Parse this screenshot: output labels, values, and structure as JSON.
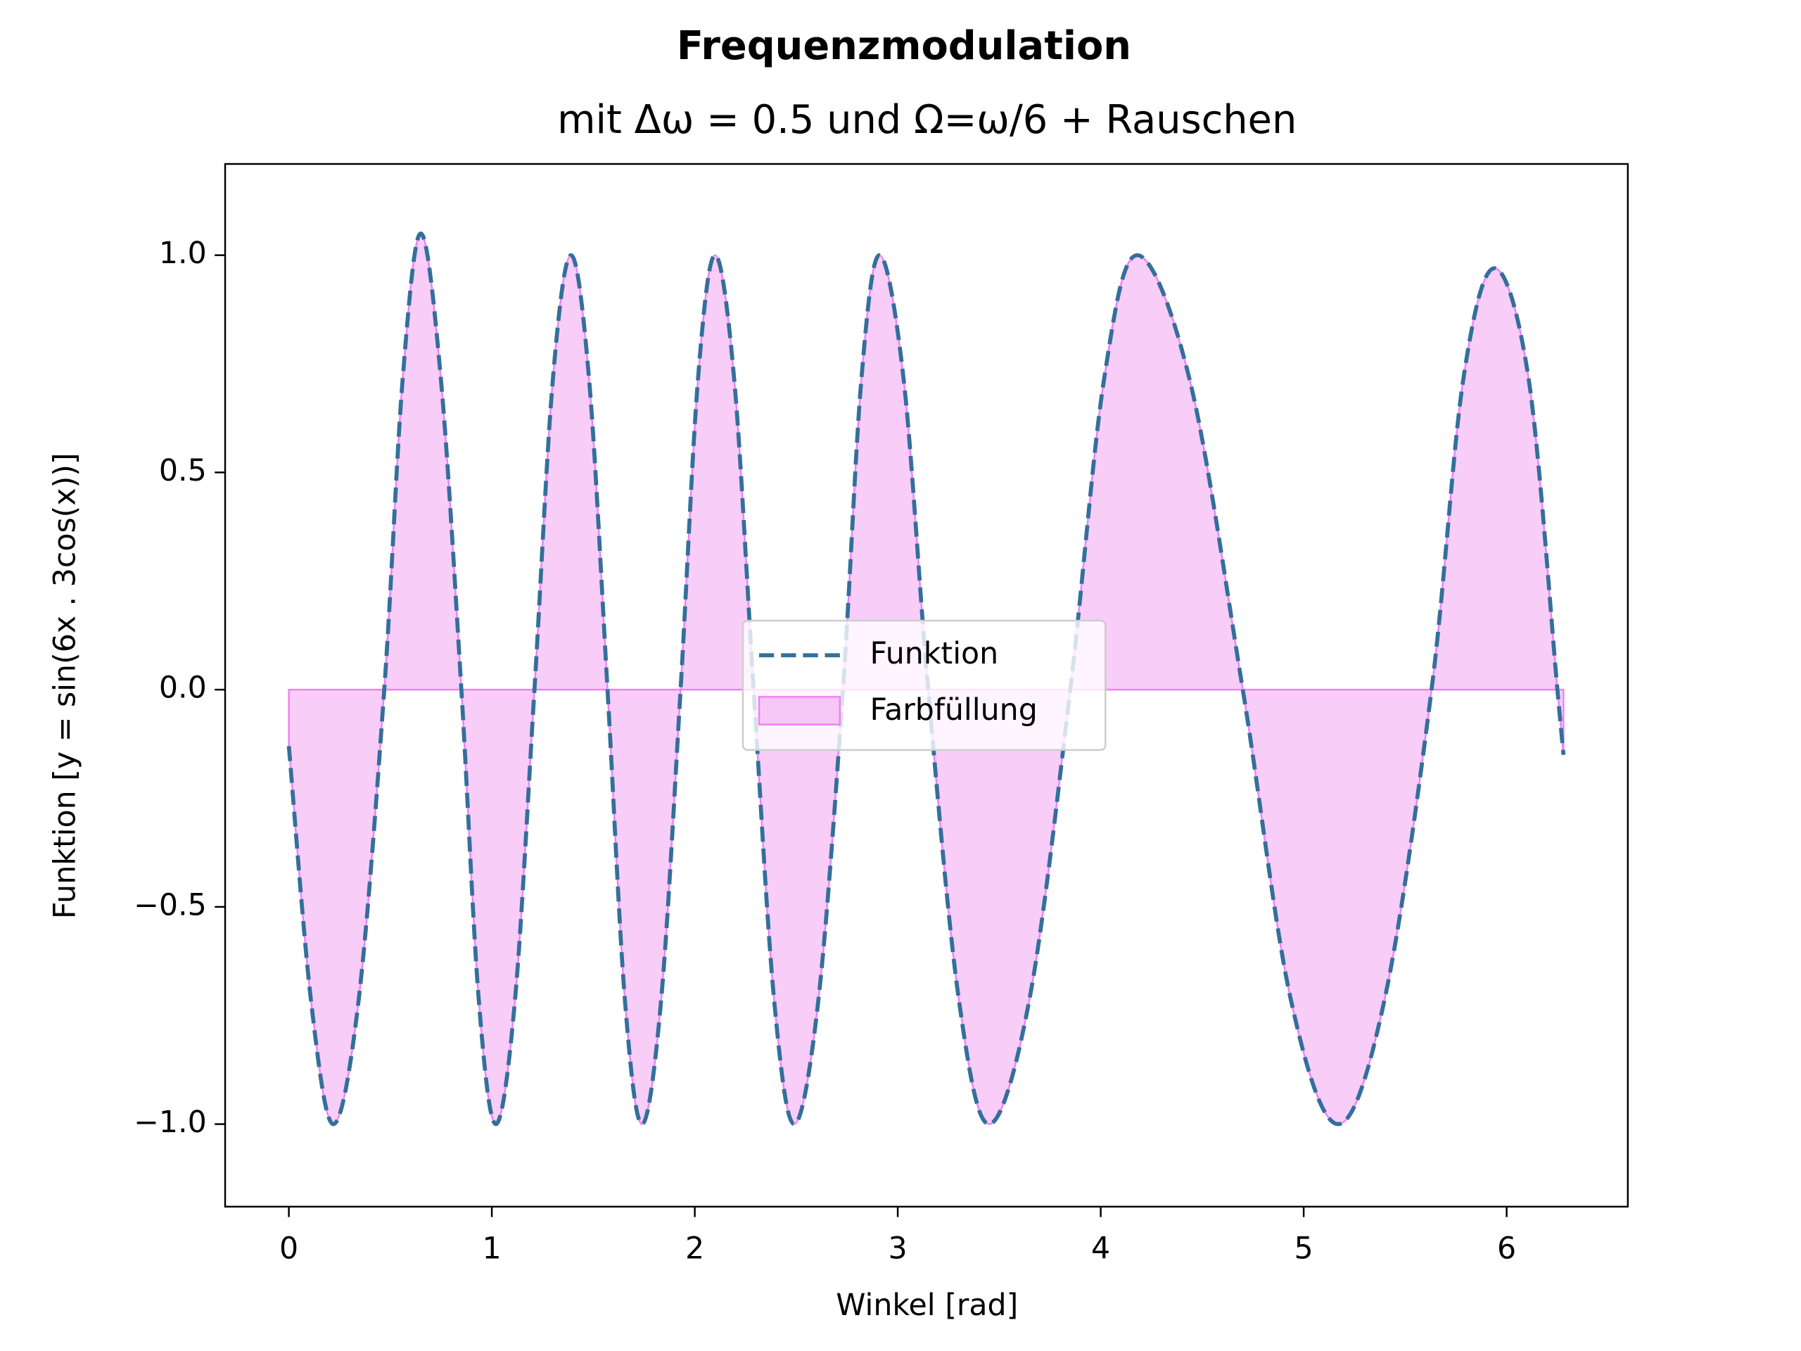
{
  "chart_data": {
    "type": "line",
    "title": "Frequenzmodulation",
    "subtitle": "mit Δω = 0.5 und Ω=ω/6 + Rauschen",
    "x_label": "Winkel [rad]",
    "y_label": "Funktion [y = sin(6x . 3cos(x))]",
    "x": [
      0,
      0.11,
      0.22,
      0.345,
      0.47,
      0.56,
      0.65,
      0.75,
      0.85,
      0.935,
      1.02,
      1.115,
      1.21,
      1.3,
      1.39,
      1.48,
      1.57,
      1.655,
      1.74,
      1.835,
      1.93,
      2.015,
      2.1,
      2.195,
      2.29,
      2.39,
      2.49,
      2.61,
      2.73,
      2.82,
      2.91,
      3.03,
      3.15,
      3.3,
      3.45,
      3.65,
      3.85,
      4.015,
      4.18,
      4.44,
      4.7,
      4.935,
      5.17,
      5.4,
      5.63,
      5.785,
      5.94,
      6.11,
      6.25,
      6.28
    ],
    "series": [
      {
        "name": "Funktion",
        "color": "#336f9b",
        "dashed": true,
        "values": [
          -0.13,
          -0.72,
          -1.0,
          -0.71,
          0,
          0.71,
          1.05,
          0.71,
          0,
          -0.71,
          -1.0,
          -0.71,
          0,
          0.71,
          1.0,
          0.71,
          0,
          -0.71,
          -1.0,
          -0.71,
          0,
          0.71,
          1.0,
          0.71,
          0,
          -0.71,
          -1.0,
          -0.71,
          0,
          0.71,
          1.0,
          0.71,
          0,
          -0.71,
          -1.0,
          -0.71,
          0,
          0.71,
          1.0,
          0.71,
          0,
          -0.71,
          -1.0,
          -0.71,
          0,
          0.71,
          0.97,
          0.71,
          0,
          -0.15
        ]
      }
    ],
    "fill": {
      "name": "Farbfüllung",
      "color": "#ee82ee"
    },
    "xlim": [
      -0.314,
      6.597
    ],
    "ylim": [
      -1.19,
      1.21
    ],
    "xticks": [
      0,
      1,
      2,
      3,
      4,
      5,
      6
    ],
    "yticks": [
      {
        "value": -1,
        "label": "−1.0"
      },
      {
        "value": -0.5,
        "label": "−0.5"
      },
      {
        "value": 0,
        "label": "0.0"
      },
      {
        "value": 0.5,
        "label": "0.5"
      },
      {
        "value": 1,
        "label": "1.0"
      }
    ],
    "legend": "center",
    "grid": false
  }
}
